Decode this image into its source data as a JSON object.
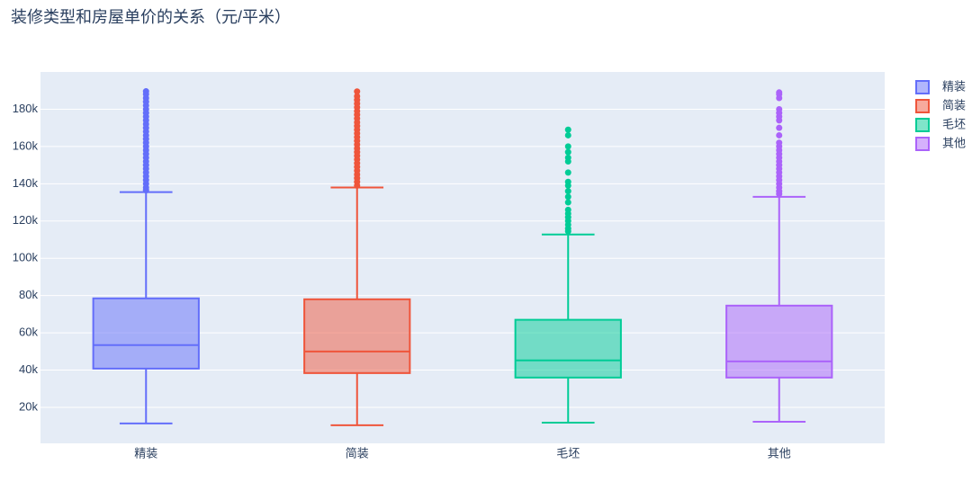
{
  "chart_data": {
    "type": "box",
    "title": "装修类型和房屋单价的关系（元/平米）",
    "categories": [
      "精装",
      "简装",
      "毛坯",
      "其他"
    ],
    "ylim": [
      700,
      200000
    ],
    "yticks": [
      {
        "value": 20000,
        "label": "20k"
      },
      {
        "value": 40000,
        "label": "40k"
      },
      {
        "value": 60000,
        "label": "60k"
      },
      {
        "value": 80000,
        "label": "80k"
      },
      {
        "value": 100000,
        "label": "100k"
      },
      {
        "value": 120000,
        "label": "120k"
      },
      {
        "value": 140000,
        "label": "140k"
      },
      {
        "value": 160000,
        "label": "160k"
      },
      {
        "value": 180000,
        "label": "180k"
      }
    ],
    "grid": true,
    "series": [
      {
        "name": "精装",
        "color": "#636efa",
        "min": 11400,
        "q1": 40800,
        "median": 53400,
        "q3": 78500,
        "max": 135500,
        "outliers": [
          136500,
          138000,
          140000,
          142000,
          144000,
          146000,
          148000,
          150000,
          152000,
          154000,
          156000,
          158000,
          160000,
          162000,
          164000,
          166000,
          168000,
          170000,
          172000,
          174000,
          176000,
          178000,
          180000,
          182000,
          184000,
          186000,
          188000,
          189600
        ]
      },
      {
        "name": "简装",
        "color": "#EF553B",
        "min": 10400,
        "q1": 38400,
        "median": 50000,
        "q3": 78000,
        "max": 138000,
        "outliers": [
          139000,
          141000,
          143000,
          145000,
          147000,
          149000,
          151000,
          153000,
          155000,
          157000,
          159000,
          161000,
          163000,
          165000,
          167000,
          169000,
          171000,
          173000,
          175000,
          177000,
          179000,
          181000,
          183000,
          185000,
          187000,
          189500
        ]
      },
      {
        "name": "毛坯",
        "color": "#00cc96",
        "min": 11800,
        "q1": 36000,
        "median": 45200,
        "q3": 67000,
        "max": 112800,
        "outliers": [
          114500,
          116000,
          118000,
          120000,
          122000,
          124000,
          126000,
          130000,
          133000,
          136000,
          139000,
          141000,
          146000,
          152000,
          154000,
          157000,
          160000,
          166000,
          169000
        ]
      },
      {
        "name": "其他",
        "color": "#ab63fa",
        "min": 12300,
        "q1": 36000,
        "median": 44700,
        "q3": 74600,
        "max": 133000,
        "outliers": [
          134500,
          136000,
          138000,
          140000,
          142000,
          144000,
          146000,
          148000,
          150000,
          152000,
          154000,
          156000,
          158000,
          160000,
          162000,
          166000,
          170000,
          174000,
          176000,
          178000,
          180000,
          186000,
          188000,
          189000
        ]
      }
    ]
  }
}
